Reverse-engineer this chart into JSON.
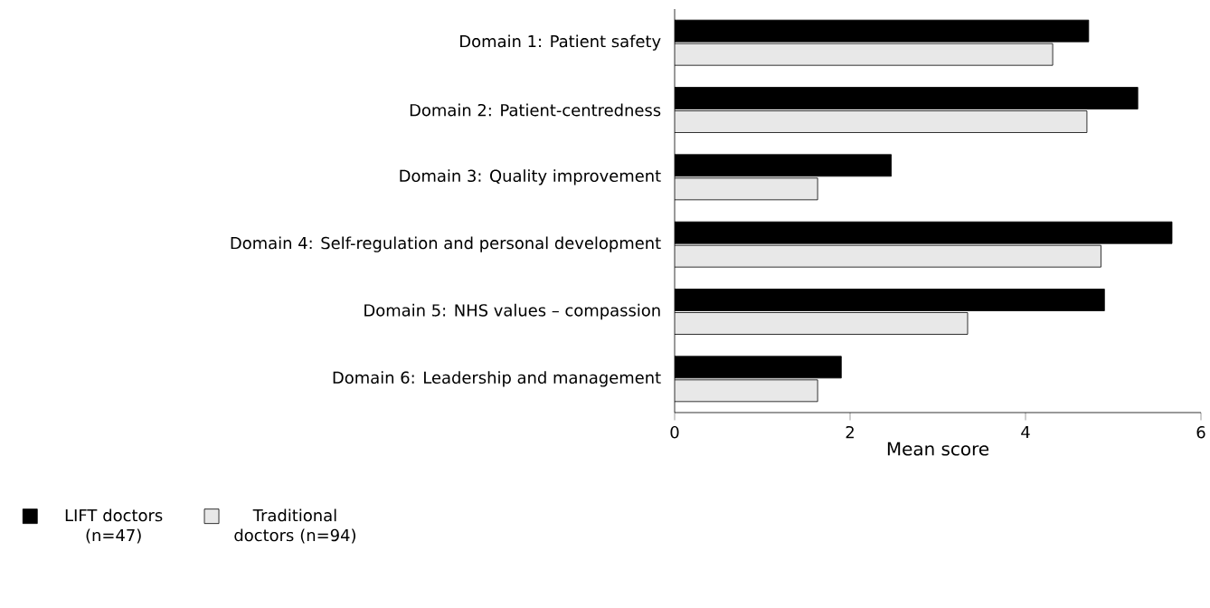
{
  "chart_data": {
    "type": "bar",
    "orientation": "horizontal",
    "xlabel": "Mean score",
    "categories": [
      "Domain 1: Patient safety",
      "Domain 2: Patient-centredness",
      "Domain 3: Quality improvement",
      "Domain 4: Self-regulation and personal development",
      "Domain 5: NHS values – compassion",
      "Domain 6: Leadership and management"
    ],
    "series": [
      {
        "name": "LIFT doctors (n=47)",
        "color": "#000000",
        "values": [
          4.72,
          5.28,
          2.47,
          5.67,
          4.9,
          1.9
        ]
      },
      {
        "name": "Traditional doctors (n=94)",
        "color": "#e8e8e8",
        "values": [
          4.31,
          4.7,
          1.63,
          4.86,
          3.34,
          1.63
        ]
      }
    ],
    "xlim": [
      0,
      6
    ],
    "xticks": [
      0,
      2,
      4,
      6
    ],
    "grid": false,
    "legend": "bottom left"
  }
}
